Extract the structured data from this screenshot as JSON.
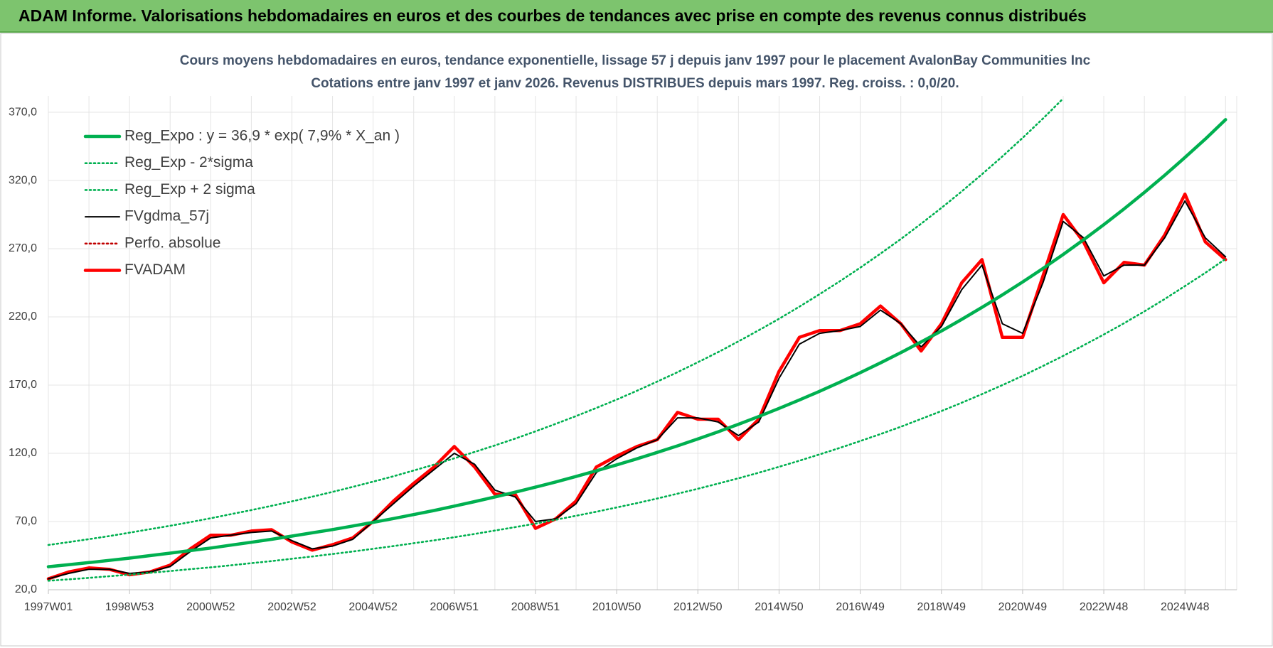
{
  "header": {
    "title": "ADAM Informe. Valorisations hebdomadaires en euros et des courbes de tendances avec prise en compte des revenus connus distribués"
  },
  "chart_data": {
    "type": "line",
    "title": "Cours moyens hebdomadaires en euros, tendance exponentielle, lissage 57 j depuis janv 1997  pour le  placement AvalonBay Communities Inc",
    "subtitle": "Cotations entre janv 1997 et janv 2026. Revenus DISTRIBUES depuis mars 1997.  Reg. croiss. : 0,0/20.",
    "categories": [
      "1997W01",
      null,
      null,
      null,
      "1998W53",
      null,
      null,
      null,
      "2000W52",
      null,
      null,
      null,
      "2002W52",
      null,
      null,
      null,
      "2004W52",
      null,
      null,
      null,
      "2006W51",
      null,
      null,
      null,
      "2008W51",
      null,
      null,
      null,
      "2010W50",
      null,
      null,
      null,
      "2012W50",
      null,
      null,
      null,
      "2014W50",
      null,
      null,
      null,
      "2016W49",
      null,
      null,
      null,
      "2018W49",
      null,
      null,
      null,
      "2020W49",
      null,
      null,
      null,
      "2022W48",
      null,
      null,
      null,
      "2024W48",
      null,
      null
    ],
    "ylim": [
      20,
      382
    ],
    "yticks": [
      {
        "value": 20,
        "label": "20,0"
      },
      {
        "value": 70,
        "label": "70,0"
      },
      {
        "value": 120,
        "label": "120,0"
      },
      {
        "value": 170,
        "label": "170,0"
      },
      {
        "value": 220,
        "label": "220,0"
      },
      {
        "value": 270,
        "label": "270,0"
      },
      {
        "value": 320,
        "label": "320,0"
      },
      {
        "value": 370,
        "label": "370,0"
      }
    ],
    "grid": true,
    "legend": "top-left",
    "series": [
      {
        "name": "Reg_Expo : y = 36,9 * exp( 7,9% *  X_an )",
        "color": "#00b050",
        "line_style": "thick",
        "values": [
          36.9,
          38.4,
          39.9,
          41.5,
          43.2,
          45.0,
          46.8,
          48.7,
          50.6,
          52.7,
          54.8,
          57.0,
          59.3,
          61.7,
          64.1,
          66.7,
          69.4,
          72.2,
          75.1,
          78.1,
          81.3,
          84.6,
          88.0,
          91.5,
          95.2,
          99.0,
          103.0,
          107.2,
          111.5,
          116.0,
          120.7,
          125.5,
          130.6,
          135.8,
          141.3,
          147.0,
          152.9,
          159.1,
          165.5,
          172.2,
          179.1,
          186.3,
          193.8,
          201.6,
          209.7,
          218.2,
          227.0,
          236.1,
          245.6,
          255.5,
          265.8,
          276.5,
          287.6,
          299.2,
          311.3,
          323.8,
          336.9,
          350.4,
          364.6
        ]
      },
      {
        "name": "Reg_Exp - 2*sigma",
        "color": "#00b050",
        "line_style": "dotted",
        "values": [
          26.6,
          27.6,
          28.7,
          29.9,
          31.1,
          32.4,
          33.7,
          35.1,
          36.4,
          37.9,
          39.5,
          41.0,
          42.7,
          44.4,
          46.2,
          48.0,
          50.0,
          52.0,
          54.1,
          56.2,
          58.5,
          60.9,
          63.4,
          65.9,
          68.5,
          71.3,
          74.2,
          77.2,
          80.3,
          83.5,
          86.9,
          90.4,
          94.0,
          97.8,
          101.7,
          105.8,
          110.1,
          114.6,
          119.2,
          124.0,
          129.0,
          134.1,
          139.5,
          145.2,
          151.0,
          157.1,
          163.4,
          170.0,
          176.8,
          184.0,
          191.4,
          199.1,
          207.1,
          215.4,
          224.1,
          233.1,
          242.6,
          252.3,
          262.5
        ]
      },
      {
        "name": "Reg_Exp + 2 sigma",
        "color": "#00b050",
        "line_style": "dotted",
        "values": [
          52.8,
          54.9,
          57.1,
          59.3,
          61.8,
          64.4,
          66.9,
          69.6,
          72.4,
          75.4,
          78.4,
          81.5,
          84.8,
          88.2,
          91.7,
          95.4,
          99.2,
          103.2,
          107.4,
          111.7,
          116.3,
          121.0,
          125.8,
          130.8,
          136.1,
          141.6,
          147.3,
          153.3,
          159.4,
          165.9,
          172.6,
          179.5,
          186.8,
          194.2,
          202.1,
          210.2,
          218.6,
          227.5,
          236.7,
          246.2,
          256.1,
          266.4,
          277.1,
          288.3,
          299.9,
          312.0,
          324.6,
          337.6,
          351.2,
          365.4,
          380.1,
          null,
          null,
          null,
          null,
          null,
          null,
          null,
          null
        ]
      },
      {
        "name": "FVgdma_57j",
        "color": "#000000",
        "line_style": "solid",
        "values": [
          28,
          32,
          35,
          35,
          32,
          33,
          37,
          48,
          58,
          60,
          62,
          63,
          56,
          50,
          52,
          57,
          70,
          83,
          96,
          108,
          120,
          112,
          93,
          88,
          70,
          72,
          83,
          106,
          116,
          124,
          130,
          146,
          146,
          143,
          133,
          143,
          175,
          200,
          208,
          210,
          213,
          225,
          215,
          198,
          213,
          240,
          258,
          215,
          208,
          245,
          290,
          278,
          250,
          258,
          258,
          278,
          305,
          278,
          264
        ]
      },
      {
        "name": "Perfo. absolue",
        "color": "#c00000",
        "line_style": "dotted",
        "values": [
          null,
          null,
          null,
          null,
          null,
          null,
          null,
          null,
          null,
          null,
          null,
          null,
          null,
          null,
          null,
          null,
          null,
          null,
          null,
          null,
          null,
          null,
          null,
          null,
          null,
          null,
          null,
          null,
          null,
          null,
          null,
          null,
          null,
          null,
          null,
          null,
          null,
          null,
          null,
          null,
          null,
          null,
          null,
          null,
          null,
          null,
          null,
          null,
          null,
          null,
          null,
          null,
          null,
          null,
          null,
          null,
          null,
          null,
          null
        ]
      },
      {
        "name": "FVADAM",
        "color": "#ff0000",
        "line_style": "thick",
        "values": [
          28,
          33,
          36,
          35,
          31,
          33,
          38,
          50,
          60,
          60,
          63,
          64,
          55,
          49,
          53,
          58,
          70,
          85,
          98,
          110,
          125,
          110,
          90,
          90,
          65,
          72,
          85,
          110,
          118,
          125,
          130,
          150,
          145,
          145,
          130,
          145,
          180,
          205,
          210,
          210,
          215,
          228,
          215,
          195,
          215,
          245,
          262,
          205,
          205,
          250,
          295,
          275,
          245,
          260,
          258,
          280,
          310,
          275,
          262
        ]
      }
    ]
  }
}
